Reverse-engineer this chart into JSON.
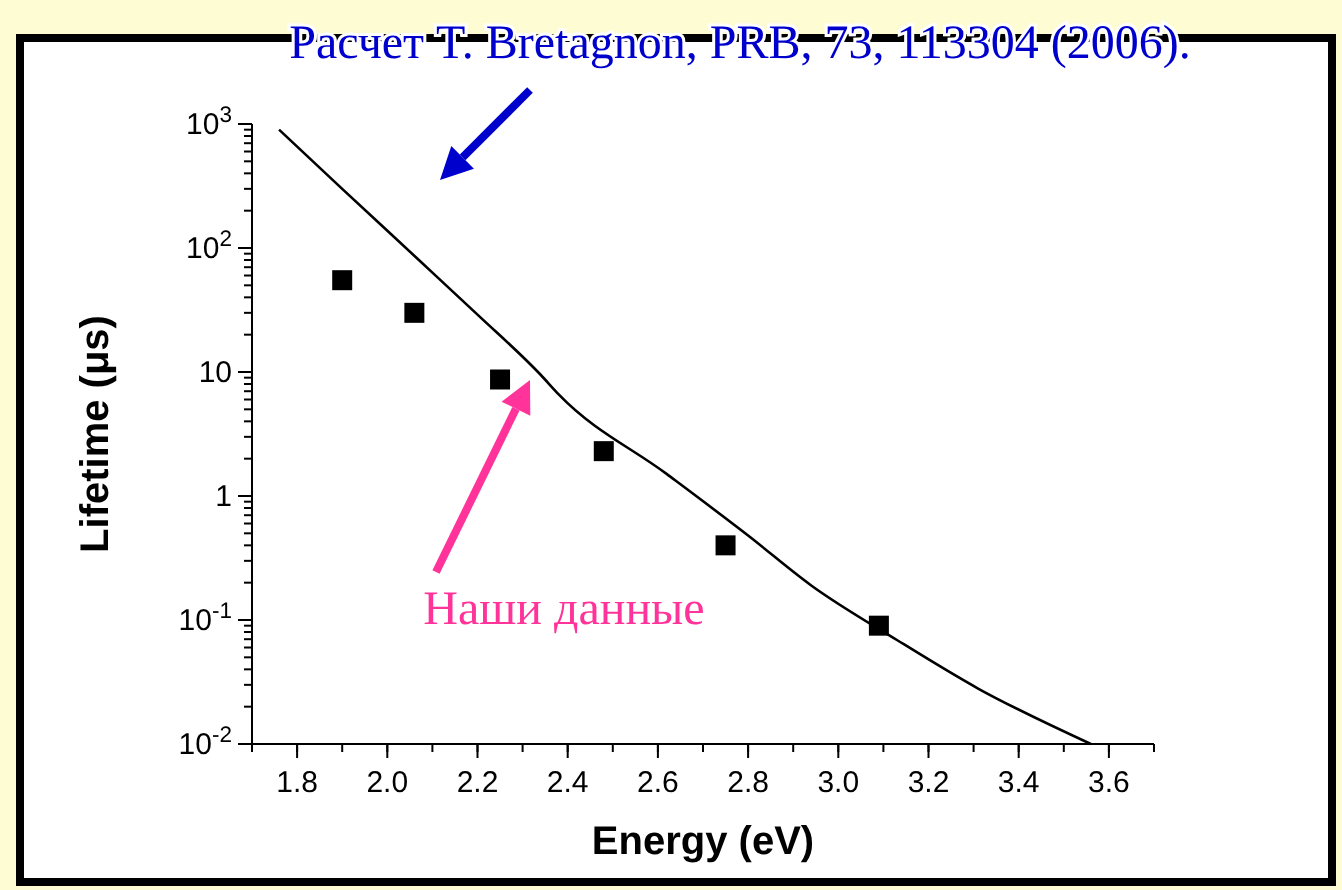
{
  "chart_data": {
    "type": "line",
    "xlabel": "Energy (eV)",
    "ylabel": "Lifetime (μs)",
    "log": "y",
    "xlim": [
      1.7,
      3.7
    ],
    "xticks": [
      1.8,
      {
        "value": 2,
        "label": "2.0"
      },
      2.2,
      2.4,
      2.6,
      2.8,
      {
        "value": 3,
        "label": "3.0"
      },
      3.2,
      3.4,
      3.6
    ],
    "ylim": [
      0.01,
      1000
    ],
    "yticks": [
      {
        "value": 0.01,
        "label": "10$^{-2}$"
      },
      {
        "value": 0.1,
        "label": "10$^{-1}$"
      },
      1,
      10,
      {
        "value": 100,
        "label": "10$^{2}$"
      },
      {
        "value": 1000,
        "label": "10$^{3}$"
      }
    ],
    "grid": false,
    "series": [
      {
        "color": "#000000",
        "marker": "none",
        "line_style": "solid",
        "x": [
          1.76,
          1.9,
          2.07,
          2.2,
          2.34,
          2.38,
          2.62,
          2.8,
          2.94,
          3.13,
          3.31,
          3.56
        ],
        "values": [
          900,
          300,
          80,
          29,
          9.5,
          6.6,
          1.5,
          0.48,
          0.19,
          0.069,
          0.028,
          0.01
        ]
      },
      {
        "type": "scatter",
        "color": "#000000",
        "marker": "square",
        "x": [
          1.9,
          2.06,
          2.25,
          2.48,
          2.75,
          3.09
        ],
        "values": [
          55,
          30,
          8.7,
          2.3,
          0.4,
          0.09
        ]
      }
    ],
    "annotations": [
      "Расчет T. Bretagnon, PRB, 73, 113304 (2006).",
      "Наши данные"
    ]
  }
}
